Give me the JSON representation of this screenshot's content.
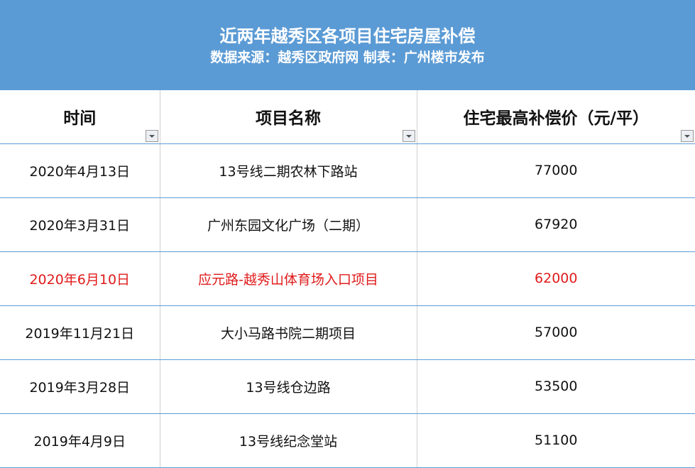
{
  "title": "近两年越秀区各项目住宅房屋补偿",
  "subtitle": "数据来源：越秀区政府网 制表：广州楼市发布",
  "colors": {
    "banner": "#5b9bd5",
    "highlight": "#e01b1b"
  },
  "columns": [
    "时间",
    "项目名称",
    "住宅最高补偿价（元/平）"
  ],
  "rows": [
    {
      "date": "2020年4月13日",
      "name": "13号线二期农林下路站",
      "price": "77000"
    },
    {
      "date": "2020年3月31日",
      "name": "广州东园文化广场（二期）",
      "price": "67920"
    },
    {
      "date": "2020年6月10日",
      "name": "应元路-越秀山体育场入口项目",
      "price": "62000",
      "highlighted": true
    },
    {
      "date": "2019年11月21日",
      "name": "大小马路书院二期项目",
      "price": "57000"
    },
    {
      "date": "2019年3月28日",
      "name": "13号线仓边路",
      "price": "53500"
    },
    {
      "date": "2019年4月9日",
      "name": "13号线纪念堂站",
      "price": "51100"
    }
  ]
}
